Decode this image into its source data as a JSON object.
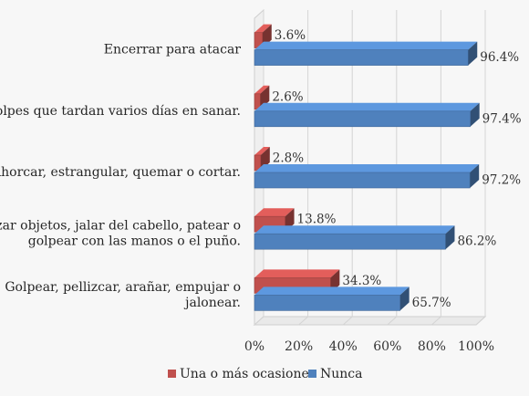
{
  "chart_data": {
    "type": "bar",
    "orientation": "horizontal",
    "style": "3d-clustered",
    "categories": [
      [
        "Encerrar para atacar"
      ],
      [
        "Golpes que tardan varios días en sanar."
      ],
      [
        "Ahorcar, estrangular, quemar o cortar."
      ],
      [
        "Lanzar objetos, jalar del cabello, patear o",
        "golpear con las manos o el puño."
      ],
      [
        "Golpear, pellizcar, arañar, empujar o",
        "jalonear."
      ]
    ],
    "series": [
      {
        "name": "Una o más ocasiones",
        "color": "#c0504d",
        "values": [
          3.6,
          2.6,
          2.8,
          13.8,
          34.3
        ],
        "labels": [
          "3.6%",
          "2.6%",
          "2.8%",
          "13.8%",
          "34.3%"
        ]
      },
      {
        "name": "Nunca",
        "color": "#4f81bd",
        "values": [
          96.4,
          97.4,
          97.2,
          86.2,
          65.7
        ],
        "labels": [
          "96.4%",
          "97.4%",
          "97.2%",
          "86.2%",
          "65.7%"
        ]
      }
    ],
    "xlim": [
      0,
      100
    ],
    "xticks": [
      0,
      20,
      40,
      60,
      80,
      100
    ],
    "xtick_labels": [
      "0%",
      "20%",
      "40%",
      "60%",
      "80%",
      "100%"
    ],
    "grid": true,
    "legend_position": "bottom"
  }
}
